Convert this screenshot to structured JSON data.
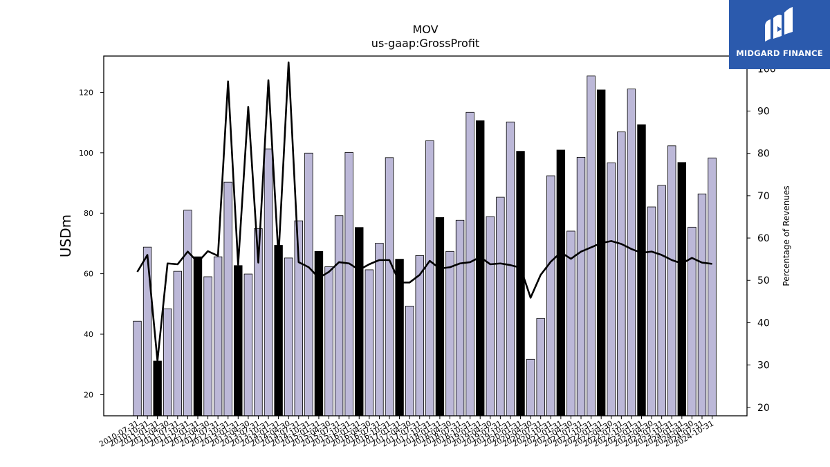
{
  "chart_data": {
    "type": "bar",
    "title": "MOV",
    "subtitle": "us-gaap:GrossProfit",
    "ylabel": "USDm",
    "y2label": "Percentage of Revenues",
    "ylim": [
      13,
      132
    ],
    "y2lim": [
      18,
      103
    ],
    "yticks": [
      20,
      40,
      60,
      80,
      100,
      120
    ],
    "y2ticks": [
      20,
      30,
      40,
      50,
      60,
      70,
      80,
      90,
      100
    ],
    "categories": [
      "2010-07-31",
      "2010-10-31",
      "2011-01-31",
      "2011-04-30",
      "2011-07-31",
      "2011-10-31",
      "2012-01-31",
      "2012-04-30",
      "2012-07-31",
      "2012-10-31",
      "2013-01-31",
      "2013-04-30",
      "2013-07-31",
      "2013-10-31",
      "2014-01-31",
      "2014-04-30",
      "2014-07-31",
      "2014-10-31",
      "2015-01-31",
      "2015-04-30",
      "2015-07-31",
      "2015-10-31",
      "2016-01-31",
      "2016-04-30",
      "2016-07-31",
      "2016-10-31",
      "2017-01-31",
      "2017-04-30",
      "2017-07-31",
      "2017-10-31",
      "2018-01-31",
      "2018-04-30",
      "2018-07-31",
      "2018-10-31",
      "2019-01-31",
      "2019-04-30",
      "2019-07-31",
      "2019-10-31",
      "2020-01-31",
      "2020-04-30",
      "2020-07-31",
      "2020-10-31",
      "2021-01-31",
      "2021-04-30",
      "2021-07-31",
      "2021-10-31",
      "2022-01-31",
      "2022-04-30",
      "2022-07-31",
      "2022-10-31",
      "2023-01-31",
      "2023-04-30",
      "2023-07-31",
      "2023-10-31",
      "2024-01-31",
      "2024-04-30",
      "2024-07-31",
      "2024-10-31"
    ],
    "series": [
      {
        "type": "bar",
        "values": [
          44.3,
          68.8,
          31.1,
          48.4,
          60.8,
          81.0,
          65.6,
          59.0,
          65.6,
          90.3,
          62.7,
          59.9,
          74.9,
          101.3,
          69.4,
          65.2,
          77.5,
          99.9,
          67.4,
          62.3,
          79.2,
          100.1,
          75.3,
          61.3,
          70.1,
          98.4,
          64.8,
          49.3,
          66.0,
          104.0,
          78.6,
          67.4,
          77.7,
          113.4,
          110.6,
          78.9,
          85.3,
          110.2,
          100.5,
          31.7,
          45.2,
          92.4,
          100.9,
          74.1,
          98.5,
          125.4,
          120.8,
          96.7,
          106.9,
          121.1,
          109.3,
          82.1,
          89.2,
          102.3,
          96.8,
          75.4,
          86.4,
          98.3
        ],
        "highlight": [
          false,
          false,
          true,
          false,
          false,
          false,
          true,
          false,
          false,
          false,
          true,
          false,
          false,
          false,
          true,
          false,
          false,
          false,
          true,
          false,
          false,
          false,
          true,
          false,
          false,
          false,
          true,
          false,
          false,
          false,
          true,
          false,
          false,
          false,
          true,
          false,
          false,
          false,
          true,
          false,
          false,
          false,
          true,
          false,
          false,
          false,
          true,
          false,
          false,
          false,
          true,
          false,
          false,
          false,
          true,
          false,
          false,
          false
        ],
        "color": "#bcb8d8",
        "highlight_color": "#000000"
      },
      {
        "type": "line",
        "axis": "right",
        "values": [
          52,
          56,
          31,
          54,
          53.8,
          56.8,
          54.3,
          56.9,
          55.8,
          97,
          53.7,
          91,
          54.2,
          97.3,
          55.5,
          101.5,
          54.3,
          53.1,
          50.6,
          52.0,
          54.3,
          54.0,
          52.5,
          53.8,
          54.8,
          54.8,
          49.5,
          49.5,
          51.3,
          54.6,
          52.8,
          53.1,
          54.0,
          54.3,
          55.5,
          53.8,
          54.0,
          53.6,
          53.0,
          45.9,
          51.3,
          54.4,
          56.6,
          55.1,
          56.8,
          57.8,
          58.8,
          59.3,
          58.6,
          57.4,
          56.5,
          56.8,
          56.0,
          54.8,
          54.0,
          55.3,
          54.2,
          53.9
        ],
        "color": "#000000"
      }
    ]
  },
  "logo": {
    "text": "MIDGARD FINANCE",
    "color": "#2b5aad"
  }
}
